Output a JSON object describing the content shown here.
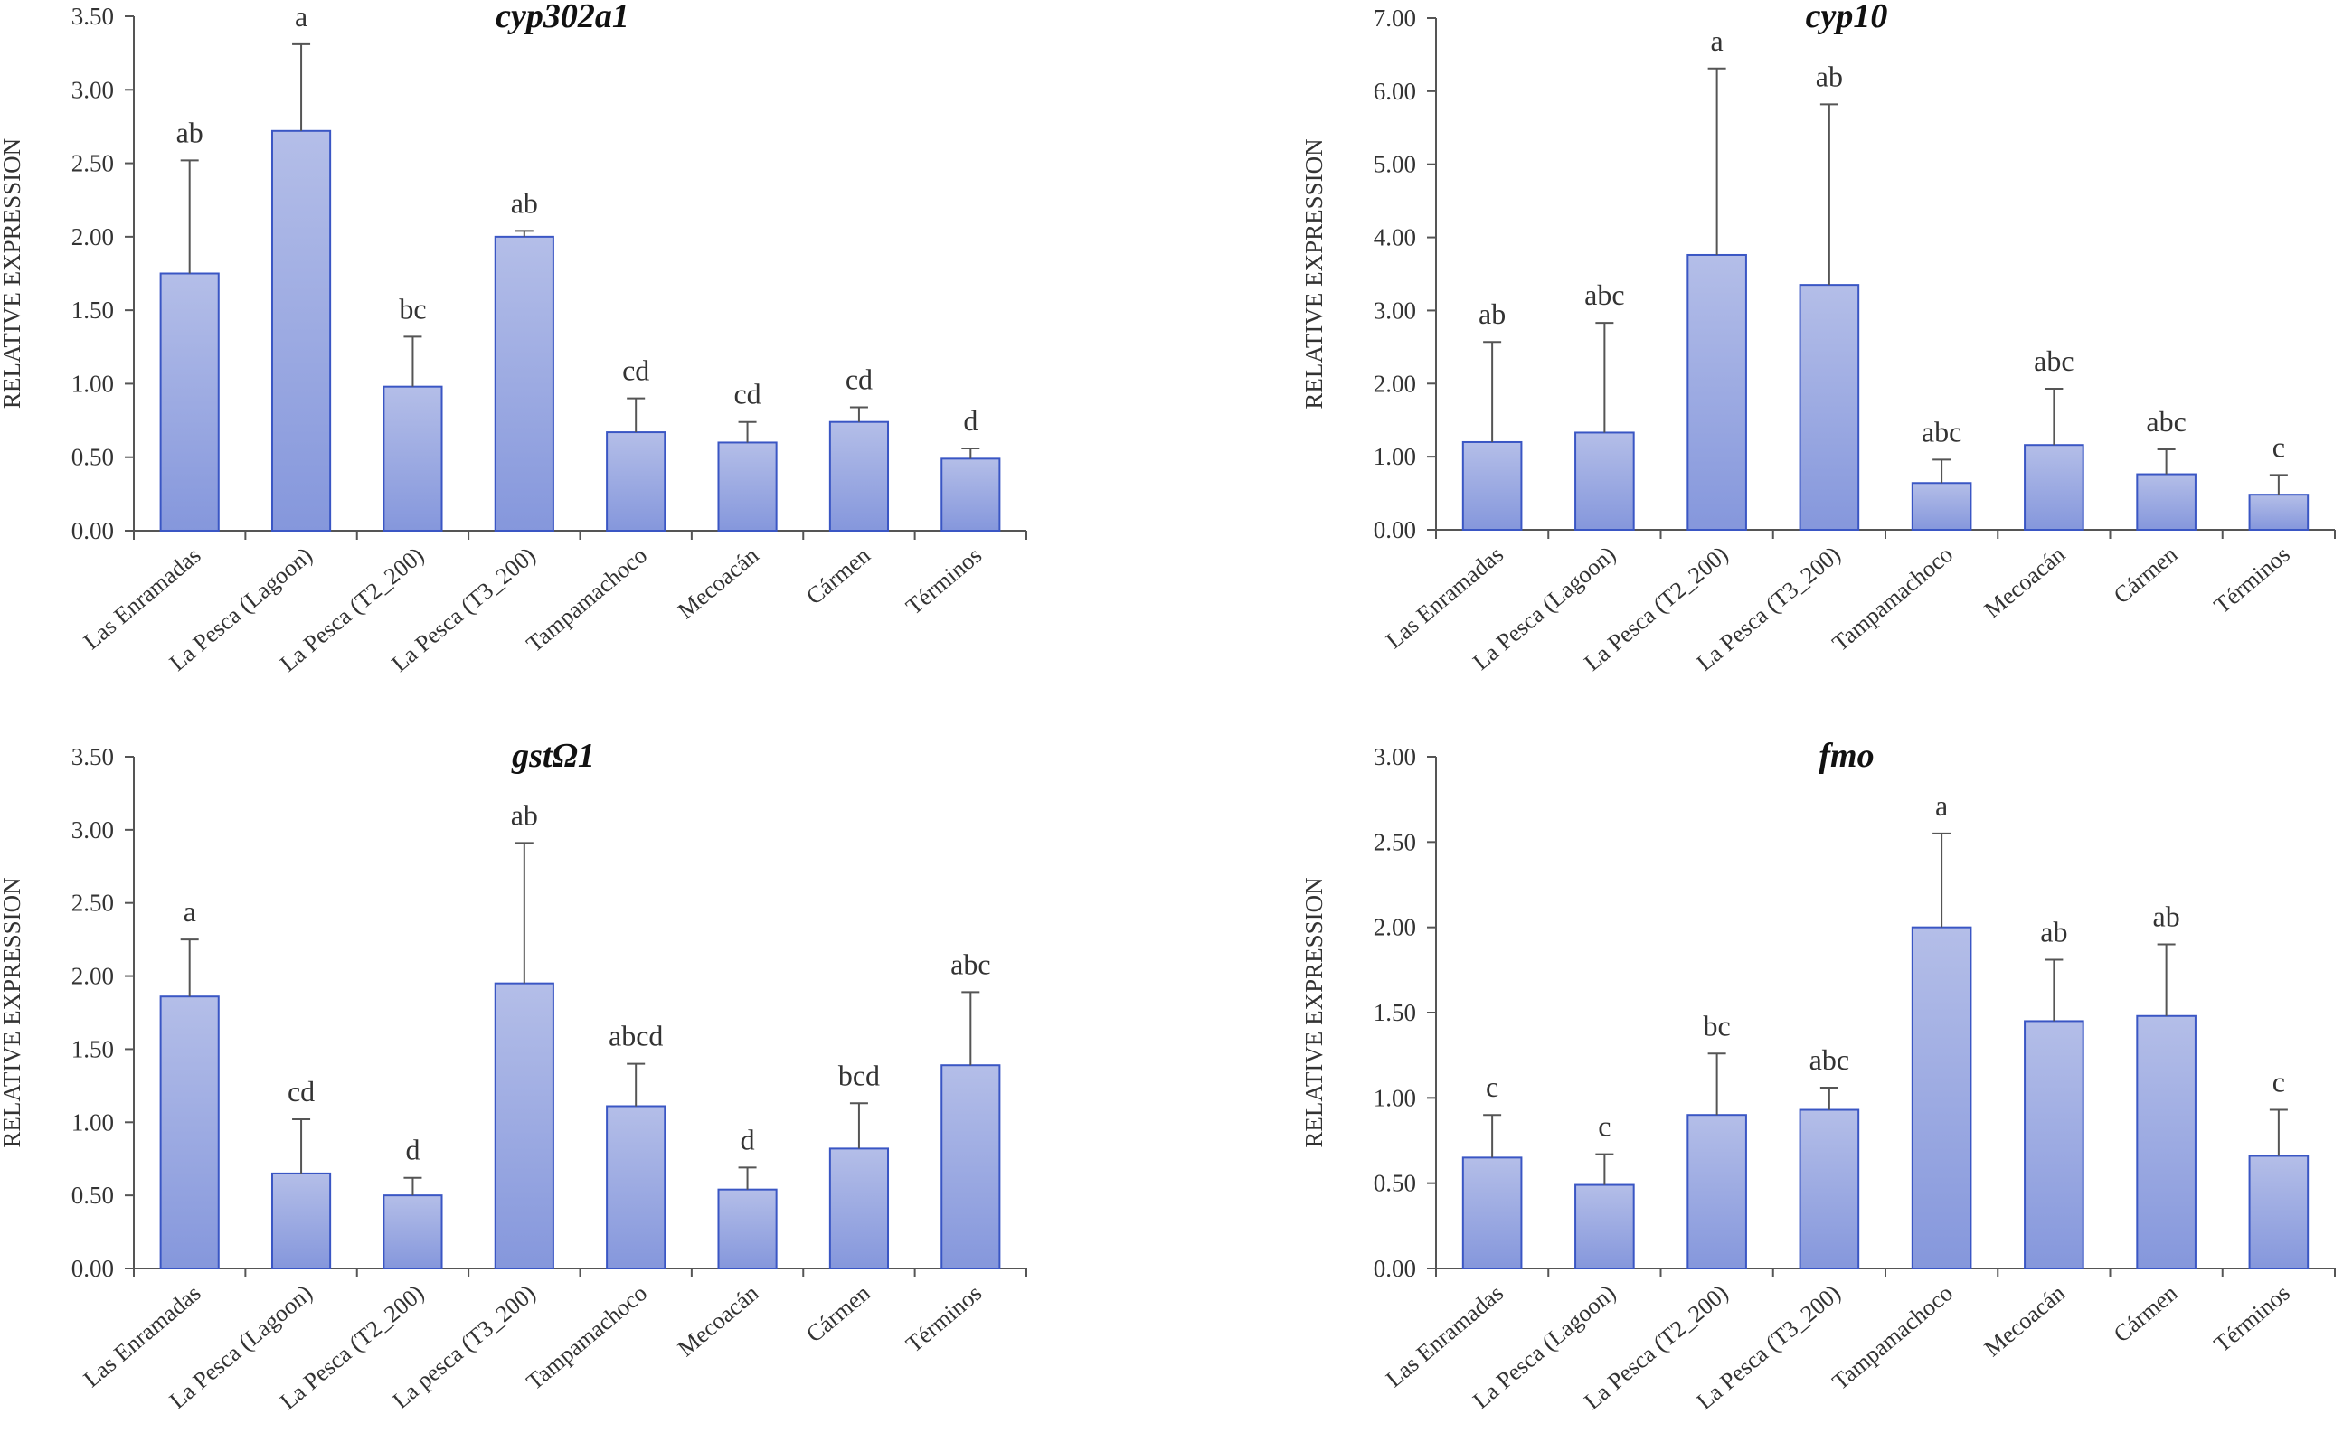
{
  "figure": {
    "bar_color_top": "#b4bee8",
    "bar_color_bottom": "#8597dc",
    "bar_stroke": "#3a56c4",
    "axis_color": "#555555",
    "text_color": "#333333"
  },
  "chart_data": [
    {
      "type": "bar",
      "title": "cyp302a1",
      "ylabel": "RELATIVE EXPRESSION",
      "xlabel": "",
      "ylim": [
        0,
        3.5
      ],
      "yticks": [
        "0.00",
        "0.50",
        "1.00",
        "1.50",
        "2.00",
        "2.50",
        "3.00",
        "3.50"
      ],
      "categories": [
        "Las Enramadas",
        "La Pesca (Lagoon)",
        "La Pesca (T2_200)",
        "La Pesca (T3_200)",
        "Tampamachoco",
        "Mecoacán",
        "Cármen",
        "Términos"
      ],
      "values": [
        1.75,
        2.72,
        0.98,
        2.0,
        0.67,
        0.6,
        0.74,
        0.49
      ],
      "errors": [
        0.77,
        0.59,
        0.34,
        0.04,
        0.23,
        0.14,
        0.1,
        0.07
      ],
      "letters": [
        "ab",
        "a",
        "bc",
        "ab",
        "cd",
        "cd",
        "cd",
        "d"
      ]
    },
    {
      "type": "bar",
      "title": "cyp10",
      "ylabel": "RELATIVE EXPRESSION",
      "xlabel": "",
      "ylim": [
        0,
        7
      ],
      "yticks": [
        "0.00",
        "1.00",
        "2.00",
        "3.00",
        "4.00",
        "5.00",
        "6.00",
        "7.00"
      ],
      "categories": [
        "Las Enramadas",
        "La Pesca (Lagoon)",
        "La Pesca (T2_200)",
        "La Pesca (T3_200)",
        "Tampamachoco",
        "Mecoacán",
        "Cármen",
        "Términos"
      ],
      "values": [
        1.2,
        1.33,
        3.76,
        3.35,
        0.64,
        1.16,
        0.76,
        0.48
      ],
      "errors": [
        1.37,
        1.5,
        2.55,
        2.47,
        0.32,
        0.77,
        0.34,
        0.27
      ],
      "letters": [
        "ab",
        "abc",
        "a",
        "ab",
        "abc",
        "abc",
        "abc",
        "c"
      ]
    },
    {
      "type": "bar",
      "title": "gstΩ1",
      "ylabel": "RELATIVE EXPRESSION",
      "xlabel": "",
      "ylim": [
        0,
        3.5
      ],
      "yticks": [
        "0.00",
        "0.50",
        "1.00",
        "1.50",
        "2.00",
        "2.50",
        "3.00",
        "3.50"
      ],
      "categories": [
        "Las Enramadas",
        "La Pesca (Lagoon)",
        "La Pesca (T2_200)",
        "La pesca (T3_200)",
        "Tampamachoco",
        "Mecoacán",
        "Cármen",
        "Términos"
      ],
      "values": [
        1.86,
        0.65,
        0.5,
        1.95,
        1.11,
        0.54,
        0.82,
        1.39
      ],
      "errors": [
        0.39,
        0.37,
        0.12,
        0.96,
        0.29,
        0.15,
        0.31,
        0.5
      ],
      "letters": [
        "a",
        "cd",
        "d",
        "ab",
        "abcd",
        "d",
        "bcd",
        "abc"
      ]
    },
    {
      "type": "bar",
      "title": "fmo",
      "ylabel": "RELATIVE EXPRESSION",
      "xlabel": "",
      "ylim": [
        0,
        3
      ],
      "yticks": [
        "0.00",
        "0.50",
        "1.00",
        "1.50",
        "2.00",
        "2.50",
        "3.00"
      ],
      "categories": [
        "Las Enramadas",
        "La Pesca (Lagoon)",
        "La Pesca (T2_200)",
        "La Pesca (T3_200)",
        "Tampamachoco",
        "Mecoacán",
        "Cármen",
        "Términos"
      ],
      "values": [
        0.65,
        0.49,
        0.9,
        0.93,
        2.0,
        1.45,
        1.48,
        0.66
      ],
      "errors": [
        0.25,
        0.18,
        0.36,
        0.13,
        0.55,
        0.36,
        0.42,
        0.27
      ],
      "letters": [
        "c",
        "c",
        "bc",
        "abc",
        "a",
        "ab",
        "ab",
        "c"
      ]
    }
  ]
}
